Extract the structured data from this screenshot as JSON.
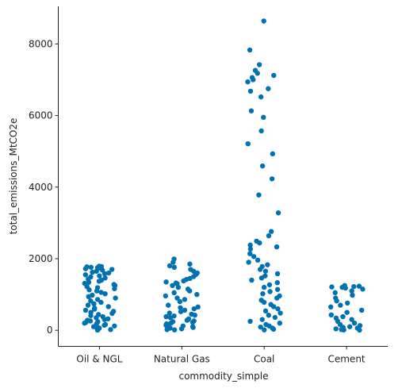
{
  "chart_data": {
    "type": "scatter",
    "subtype": "strip",
    "title": "",
    "xlabel": "commodity_simple",
    "ylabel": "total_emissions_MtCO2e",
    "categories": [
      "Oil & NGL",
      "Natural Gas",
      "Coal",
      "Cement"
    ],
    "ylim": [
      -450,
      9050
    ],
    "yticks": [
      0,
      2000,
      4000,
      6000,
      8000
    ],
    "grid": false,
    "legend": "none",
    "marker_color": "#0072b2",
    "series": [
      {
        "category": "Oil & NGL",
        "values": [
          1790,
          1780,
          1770,
          1760,
          1750,
          1740,
          1720,
          1700,
          1680,
          1650,
          1620,
          1600,
          1580,
          1550,
          1520,
          1490,
          1460,
          1430,
          1400,
          1370,
          1340,
          1310,
          1280,
          1250,
          1220,
          1190,
          1160,
          1130,
          1100,
          1060,
          1020,
          980,
          940,
          900,
          860,
          820,
          780,
          740,
          700,
          660,
          620,
          590,
          560,
          530,
          500,
          470,
          440,
          410,
          380,
          350,
          320,
          300,
          280,
          260,
          240,
          220,
          200,
          180,
          160,
          140,
          120,
          100,
          80,
          60,
          40,
          20,
          10,
          5
        ]
      },
      {
        "category": "Natural Gas",
        "values": [
          1990,
          1900,
          1850,
          1800,
          1760,
          1700,
          1650,
          1600,
          1560,
          1500,
          1450,
          1420,
          1380,
          1350,
          1320,
          1300,
          1250,
          1200,
          1150,
          1100,
          1050,
          1000,
          960,
          900,
          860,
          800,
          700,
          650,
          630,
          600,
          560,
          520,
          480,
          450,
          420,
          400,
          380,
          350,
          320,
          300,
          280,
          260,
          240,
          220,
          200,
          180,
          160,
          140,
          120,
          100,
          80,
          60,
          40,
          20,
          10
        ]
      },
      {
        "category": "Coal",
        "values": [
          8640,
          7830,
          7420,
          7260,
          7180,
          7120,
          7060,
          7000,
          6940,
          6750,
          6680,
          6520,
          6130,
          5950,
          5570,
          5210,
          4930,
          4590,
          4230,
          3780,
          3280,
          2760,
          2640,
          2490,
          2440,
          2380,
          2330,
          2270,
          2140,
          2060,
          1960,
          1900,
          1830,
          1780,
          1700,
          1650,
          1580,
          1520,
          1460,
          1400,
          1330,
          1270,
          1200,
          1140,
          1080,
          1020,
          960,
          900,
          840,
          780,
          720,
          660,
          600,
          540,
          480,
          420,
          360,
          300,
          250,
          200,
          160,
          120,
          90,
          60,
          30,
          10
        ]
      },
      {
        "category": "Cement",
        "values": [
          1250,
          1230,
          1220,
          1210,
          1200,
          1180,
          1150,
          1100,
          1050,
          980,
          900,
          820,
          760,
          700,
          650,
          560,
          500,
          430,
          380,
          340,
          300,
          250,
          200,
          160,
          130,
          100,
          80,
          60,
          40,
          20,
          10,
          5
        ]
      }
    ]
  }
}
